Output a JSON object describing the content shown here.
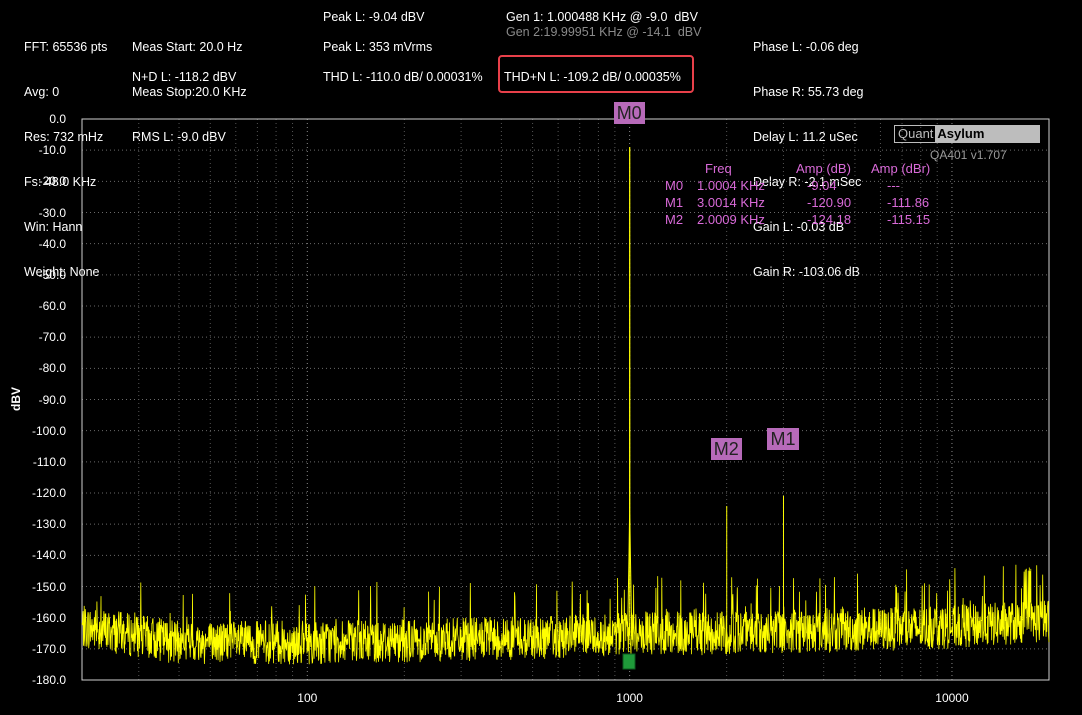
{
  "stats": {
    "col1": [
      "FFT: 65536 pts",
      "Avg: 0",
      "Res: 732 mHz",
      "Fs: 48.0 KHz",
      "Win: Hann",
      "Weight: None"
    ],
    "col2": {
      "meas_start": "Meas Start: 20.0 Hz",
      "meas_stop": "Meas Stop:20.0 KHz",
      "rms": "RMS L: -9.0 dBV",
      "nd": "N+D L: -118.2 dBV"
    },
    "col3": {
      "peak_l": "Peak L: -9.04 dBV",
      "peak_mv": "Peak L: 353 mVrms",
      "thd": "THD L: -110.0 dB/ 0.00031%"
    },
    "col4": {
      "gen1": "Gen 1: 1.000488 KHz @ -9.0  dBV",
      "gen2": "Gen 2:19.99951 KHz @ -14.1  dBV",
      "thdn": "THD+N L: -109.2 dB/ 0.00035%"
    },
    "col5": [
      "Phase L: -0.06 deg",
      "Phase R: 55.73 deg",
      "Delay L: 11.2 uSec",
      "Delay R: -2.1 mSec",
      "Gain L: -0.03 dB",
      "Gain R: -103.06 dB"
    ]
  },
  "brand": {
    "quant": "Quant",
    "asylum": "Asylum",
    "version": "QA401 v1.707"
  },
  "chart_data": {
    "type": "line",
    "ylabel": "dBV",
    "xscale": "log",
    "xlim": [
      20,
      20000
    ],
    "ylim": [
      -180,
      0
    ],
    "yticks": [
      "0.0",
      "-10.0",
      "-20.0",
      "-30.0",
      "-40.0",
      "-50.0",
      "-60.0",
      "-70.0",
      "-80.0",
      "-90.0",
      "-100.0",
      "-110.0",
      "-120.0",
      "-130.0",
      "-140.0",
      "-150.0",
      "-160.0",
      "-170.0",
      "-180.0"
    ],
    "xticks": [
      {
        "v": 100,
        "label": "100"
      },
      {
        "v": 1000,
        "label": "1000"
      },
      {
        "v": 10000,
        "label": "10000"
      }
    ],
    "grid": true,
    "trace_color": "#ffff00",
    "peaks": [
      {
        "name": "M0",
        "freq_hz": 1000.4,
        "amp_db": -9.04
      },
      {
        "name": "M2",
        "freq_hz": 2000.9,
        "amp_db": -124.18
      },
      {
        "name": "M1",
        "freq_hz": 3001.4,
        "amp_db": -120.9
      }
    ],
    "noise_floor": [
      {
        "x": 20,
        "y": -163
      },
      {
        "x": 40,
        "y": -168
      },
      {
        "x": 100,
        "y": -168
      },
      {
        "x": 300,
        "y": -167
      },
      {
        "x": 700,
        "y": -166
      },
      {
        "x": 1000,
        "y": -165
      },
      {
        "x": 2000,
        "y": -165
      },
      {
        "x": 5000,
        "y": -164
      },
      {
        "x": 10000,
        "y": -163
      },
      {
        "x": 20000,
        "y": -161
      }
    ],
    "marker_table": {
      "headers": [
        "Freq",
        "Amp (dB)",
        "Amp (dBr)"
      ],
      "rows": [
        {
          "marker": "M0",
          "freq": "1.0004 KHz",
          "amp": "-9.04",
          "ampr": "---"
        },
        {
          "marker": "M1",
          "freq": "3.0014 KHz",
          "amp": "-120.90",
          "ampr": "-111.86"
        },
        {
          "marker": "M2",
          "freq": "2.0009 KHz",
          "amp": "-124.18",
          "ampr": "-115.15"
        }
      ]
    }
  }
}
